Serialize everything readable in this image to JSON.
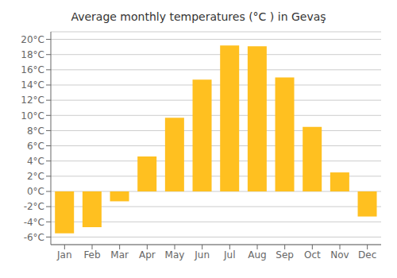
{
  "chart_data": {
    "type": "bar",
    "title": "Average monthly temperatures (°C ) in Gevaş",
    "categories": [
      "Jan",
      "Feb",
      "Mar",
      "Apr",
      "May",
      "Jun",
      "Jul",
      "Aug",
      "Sep",
      "Oct",
      "Nov",
      "Dec"
    ],
    "values": [
      -5.5,
      -4.7,
      -1.3,
      4.6,
      9.7,
      14.7,
      19.2,
      19.1,
      15.0,
      8.5,
      2.5,
      -3.3
    ],
    "color": "#FFC020",
    "ylim": [
      -7,
      21
    ],
    "yticks": [
      {
        "value": -6,
        "label": "-6°C"
      },
      {
        "value": -4,
        "label": "-4°C"
      },
      {
        "value": -2,
        "label": "-2°C"
      },
      {
        "value": 0,
        "label": "0°C"
      },
      {
        "value": 2,
        "label": "2°C"
      },
      {
        "value": 4,
        "label": "4°C"
      },
      {
        "value": 6,
        "label": "6°C"
      },
      {
        "value": 8,
        "label": "8°C"
      },
      {
        "value": 10,
        "label": "10°C"
      },
      {
        "value": 12,
        "label": "12°C"
      },
      {
        "value": 14,
        "label": "14°C"
      },
      {
        "value": 16,
        "label": "16°C"
      },
      {
        "value": 18,
        "label": "18°C"
      },
      {
        "value": 20,
        "label": "20°C"
      }
    ],
    "grid": true
  }
}
